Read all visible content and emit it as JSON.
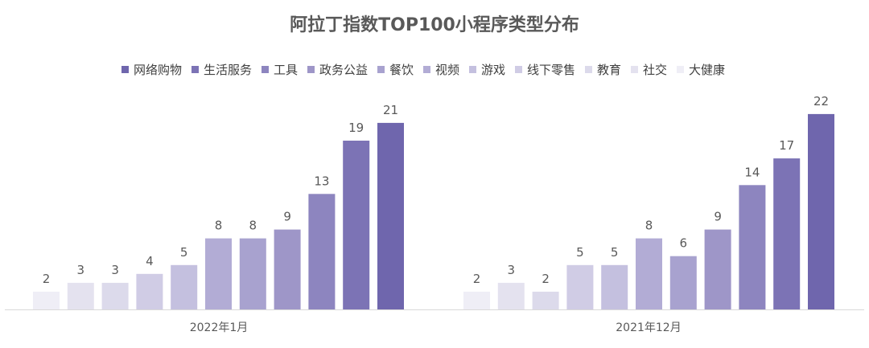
{
  "chart_data": {
    "type": "bar",
    "title": "阿拉丁指数TOP100小程序类型分布",
    "xlabel": "",
    "ylabel": "",
    "ylim": [
      0,
      24
    ],
    "grid": false,
    "legend_position": "top",
    "categories": [
      "2022年1月",
      "2021年12月"
    ],
    "series": [
      {
        "name": "大健康",
        "color": "#efeef6",
        "values": [
          2,
          2
        ]
      },
      {
        "name": "社交",
        "color": "#e4e2ef",
        "values": [
          3,
          3
        ]
      },
      {
        "name": "教育",
        "color": "#dcdaeb",
        "values": [
          3,
          2
        ]
      },
      {
        "name": "线下零售",
        "color": "#d0cce5",
        "values": [
          4,
          5
        ]
      },
      {
        "name": "游戏",
        "color": "#c4c0df",
        "values": [
          5,
          5
        ]
      },
      {
        "name": "视频",
        "color": "#b2acd5",
        "values": [
          8,
          8
        ]
      },
      {
        "name": "餐饮",
        "color": "#a8a2cf",
        "values": [
          8,
          6
        ]
      },
      {
        "name": "政务公益",
        "color": "#9e96c8",
        "values": [
          9,
          9
        ]
      },
      {
        "name": "工具",
        "color": "#8d85bf",
        "values": [
          13,
          14
        ]
      },
      {
        "name": "生活服务",
        "color": "#7c73b5",
        "values": [
          19,
          17
        ]
      },
      {
        "name": "网络购物",
        "color": "#6f66ad",
        "values": [
          21,
          22
        ]
      }
    ]
  }
}
